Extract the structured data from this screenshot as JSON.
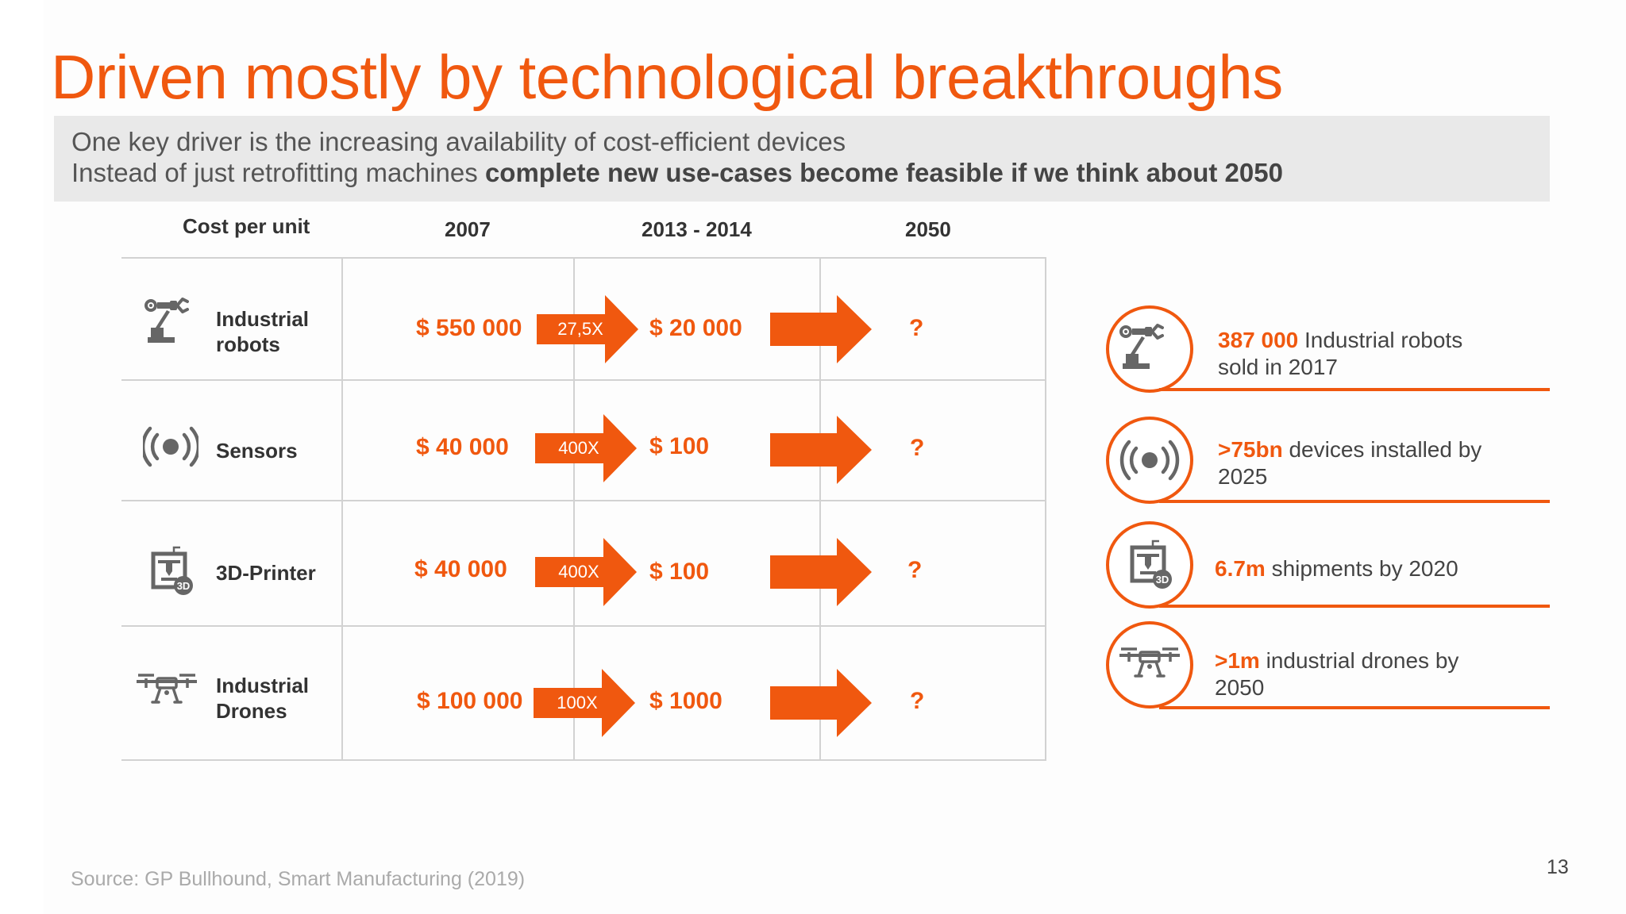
{
  "title": "Driven mostly by technological breakthroughs",
  "subtitle": {
    "line1": "One key driver is the increasing availability of cost-efficient devices",
    "line2_normal": "Instead of just retrofitting machines ",
    "line2_bold": "complete new use-cases become feasible if we think about 2050"
  },
  "table": {
    "headers": [
      "Cost per unit",
      "2007",
      "2013 - 2014",
      "2050"
    ],
    "rows": [
      {
        "icon": "robot-arm-icon",
        "label": "Industrial robots",
        "price_2007": "$ 550 000",
        "factor": "27,5X",
        "price_2013": "$ 20 000",
        "price_2050": "?"
      },
      {
        "icon": "sensor-icon",
        "label": "Sensors",
        "price_2007": "$ 40 000",
        "factor": "400X",
        "price_2013": "$ 100",
        "price_2050": "?"
      },
      {
        "icon": "3d-printer-icon",
        "label": "3D-Printer",
        "price_2007": "$ 40 000",
        "factor": "400X",
        "price_2013": "$ 100",
        "price_2050": "?"
      },
      {
        "icon": "drone-icon",
        "label": "Industrial Drones",
        "price_2007": "$ 100 000",
        "factor": "100X",
        "price_2013": "$ 1000",
        "price_2050": "?"
      }
    ]
  },
  "stats": [
    {
      "icon": "robot-arm-icon",
      "highlight": "387 000",
      "text1": " Industrial robots",
      "text2": "sold in 2017"
    },
    {
      "icon": "sensor-icon",
      "highlight": ">75bn",
      "text1": " devices installed by",
      "text2": "2025"
    },
    {
      "icon": "3d-printer-icon",
      "highlight": "6.7m",
      "text1": " shipments by 2020",
      "text2": ""
    },
    {
      "icon": "drone-icon",
      "highlight": ">1m",
      "text1": " industrial drones by",
      "text2": "2050"
    }
  ],
  "source": "Source: GP Bullhound, Smart Manufacturing (2019)",
  "page_number": "13",
  "colors": {
    "accent": "#f0580f",
    "text": "#444444",
    "subtitle_bg": "#e9e9e9",
    "grid": "#d2d2d2"
  }
}
